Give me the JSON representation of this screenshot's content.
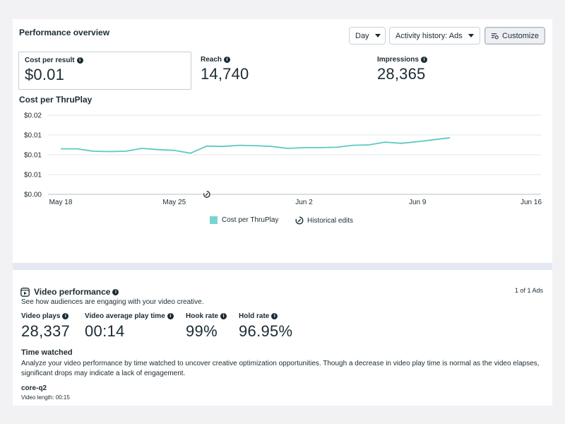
{
  "performance": {
    "title": "Performance overview",
    "controls": {
      "day_label": "Day",
      "activity_label": "Activity history: Ads",
      "customize_label": "Customize"
    },
    "metrics": [
      {
        "label": "Cost per result",
        "value": "$0.01"
      },
      {
        "label": "Reach",
        "value": "14,740"
      },
      {
        "label": "Impressions",
        "value": "28,365"
      }
    ]
  },
  "chart_data": {
    "type": "line",
    "title": "Cost per ThruPlay",
    "y_tick_labels": [
      "$0.02",
      "$0.01",
      "$0.01",
      "$0.01",
      "$0.00"
    ],
    "ylim": [
      0,
      0.02
    ],
    "x_tick_labels": [
      "May 18",
      "May 25",
      "Jun 2",
      "Jun 9",
      "Jun 16"
    ],
    "x_tick_days": [
      0,
      7,
      15,
      22,
      29
    ],
    "x_range_days": [
      0,
      29
    ],
    "series": [
      {
        "name": "Cost per ThruPlay",
        "color": "#5cc9c2",
        "x_days": [
          0,
          1,
          2,
          3,
          4,
          5,
          6,
          7,
          8,
          9,
          10,
          11,
          12,
          13,
          14,
          15,
          16,
          17,
          18,
          19,
          20,
          21,
          22,
          23,
          24
        ],
        "values": [
          0.0115,
          0.0115,
          0.0109,
          0.0108,
          0.0109,
          0.0116,
          0.0113,
          0.0111,
          0.0104,
          0.0122,
          0.0121,
          0.0124,
          0.0123,
          0.0121,
          0.0116,
          0.0118,
          0.0118,
          0.0119,
          0.0124,
          0.0125,
          0.0132,
          0.0129,
          0.0133,
          0.0138,
          0.0143
        ]
      }
    ],
    "historical_edit_markers_days": [
      9
    ],
    "legend": [
      {
        "label": "Cost per ThruPlay",
        "icon": "teal-square-swatch"
      },
      {
        "label": "Historical edits",
        "icon": "historical-edits-icon"
      }
    ],
    "grid": true
  },
  "video": {
    "title": "Video performance",
    "subtitle": "See how audiences are engaging with your video creative.",
    "ads_count": "1 of 1 Ads",
    "stats": [
      {
        "label": "Video plays",
        "value": "28,337"
      },
      {
        "label": "Video average play time",
        "value": "00:14"
      },
      {
        "label": "Hook rate",
        "value": "99%"
      },
      {
        "label": "Hold rate",
        "value": "96.95%"
      }
    ],
    "time_watched_title": "Time watched",
    "time_watched_text": "Analyze your video performance by time watched to uncover creative optimization opportunities. Though a decrease in video play time is normal as the video elapses, significant drops may indicate a lack of engagement.",
    "ad_name": "core-q2",
    "video_length": "Video length: 00:15"
  }
}
